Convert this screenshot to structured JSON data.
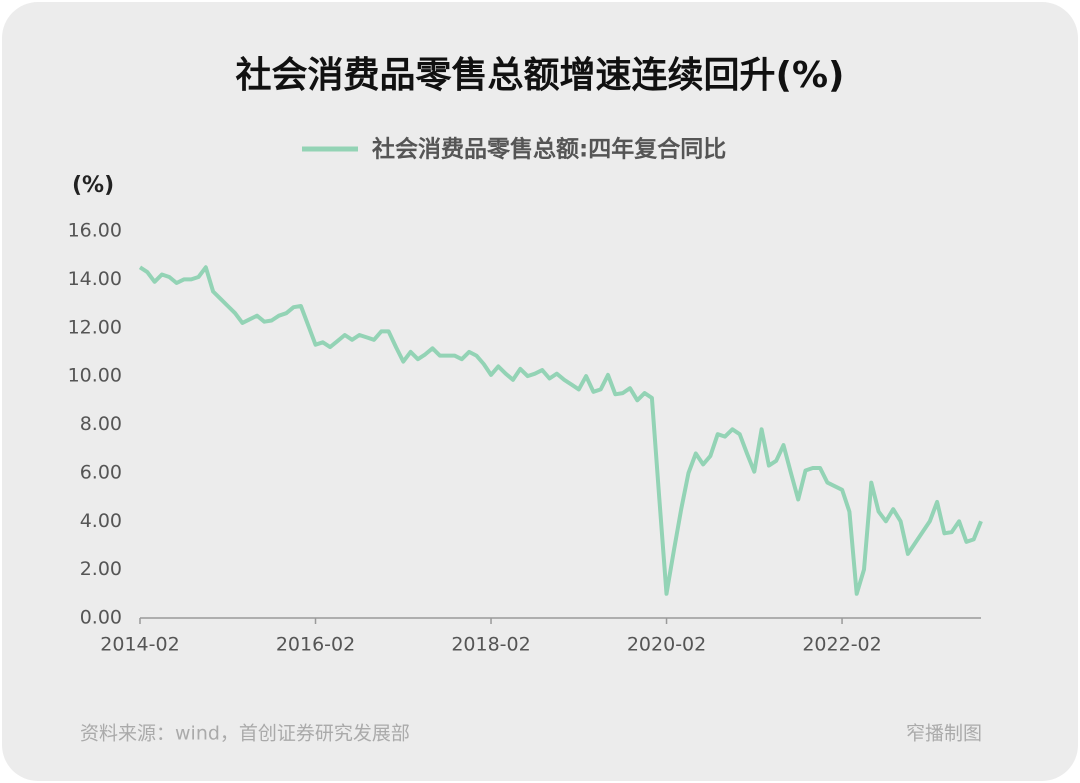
{
  "chart_data": {
    "type": "line",
    "title": "社会消费品零售总额增速连续回升(%)",
    "y_unit_label": "(%)",
    "source": "资料来源：wind，首创证券研究发展部",
    "credit": "窄播制图",
    "x": [
      "2014-02",
      "2014-03",
      "2014-04",
      "2014-05",
      "2014-06",
      "2014-07",
      "2014-08",
      "2014-09",
      "2014-10",
      "2014-11",
      "2014-12",
      "2015-01",
      "2015-02",
      "2015-03",
      "2015-04",
      "2015-05",
      "2015-06",
      "2015-07",
      "2015-08",
      "2015-09",
      "2015-10",
      "2015-11",
      "2015-12",
      "2016-01",
      "2016-02",
      "2016-03",
      "2016-04",
      "2016-05",
      "2016-06",
      "2016-07",
      "2016-08",
      "2016-09",
      "2016-10",
      "2016-11",
      "2016-12",
      "2017-01",
      "2017-02",
      "2017-03",
      "2017-04",
      "2017-05",
      "2017-06",
      "2017-07",
      "2017-08",
      "2017-09",
      "2017-10",
      "2017-11",
      "2017-12",
      "2018-01",
      "2018-02",
      "2018-03",
      "2018-04",
      "2018-05",
      "2018-06",
      "2018-07",
      "2018-08",
      "2018-09",
      "2018-10",
      "2018-11",
      "2018-12",
      "2019-01",
      "2019-02",
      "2019-03",
      "2019-04",
      "2019-05",
      "2019-06",
      "2019-07",
      "2019-08",
      "2019-09",
      "2019-10",
      "2019-11",
      "2019-12",
      "2020-01",
      "2020-02",
      "2020-03",
      "2020-04",
      "2020-05",
      "2020-06",
      "2020-07",
      "2020-08",
      "2020-09",
      "2020-10",
      "2020-11",
      "2020-12",
      "2021-01",
      "2021-02",
      "2021-03",
      "2021-04",
      "2021-05",
      "2021-06",
      "2021-07",
      "2021-08",
      "2021-09",
      "2021-10",
      "2021-11",
      "2021-12",
      "2022-01",
      "2022-02",
      "2022-03",
      "2022-04",
      "2022-05",
      "2022-06",
      "2022-07",
      "2022-08",
      "2022-09",
      "2022-10",
      "2022-11",
      "2022-12",
      "2023-01",
      "2023-02",
      "2023-03",
      "2023-04",
      "2023-05",
      "2023-06",
      "2023-07",
      "2023-08",
      "2023-09"
    ],
    "series": [
      {
        "name": "社会消费品零售总额:四年复合同比",
        "color": "#93d3b5",
        "values": [
          14.5,
          14.3,
          13.9,
          14.2,
          14.1,
          13.85,
          14.0,
          14.0,
          14.1,
          14.5,
          13.5,
          13.2,
          12.9,
          12.6,
          12.2,
          12.35,
          12.5,
          12.25,
          12.3,
          12.5,
          12.6,
          12.85,
          12.9,
          12.1,
          11.3,
          11.4,
          11.2,
          11.45,
          11.7,
          11.5,
          11.7,
          11.6,
          11.5,
          11.85,
          11.85,
          11.2,
          10.6,
          11.0,
          10.7,
          10.9,
          11.15,
          10.85,
          10.85,
          10.85,
          10.7,
          11.0,
          10.85,
          10.5,
          10.05,
          10.4,
          10.1,
          9.85,
          10.3,
          10.0,
          10.1,
          10.25,
          9.9,
          10.1,
          9.85,
          9.65,
          9.45,
          10.0,
          9.35,
          9.45,
          10.05,
          9.25,
          9.3,
          9.5,
          9.0,
          9.3,
          9.1,
          5.0,
          1.0,
          2.8,
          4.5,
          6.0,
          6.8,
          6.35,
          6.7,
          7.6,
          7.5,
          7.8,
          7.6,
          6.8,
          6.05,
          7.8,
          6.3,
          6.5,
          7.15,
          6.0,
          4.9,
          6.1,
          6.2,
          6.2,
          5.6,
          5.45,
          5.3,
          4.4,
          1.0,
          2.0,
          5.6,
          4.4,
          4.0,
          4.5,
          4.0,
          2.65,
          3.1,
          3.55,
          4.0,
          4.8,
          3.5,
          3.55,
          4.0,
          3.15,
          3.25,
          4.0
        ]
      }
    ],
    "xlim": [
      "2014-02",
      "2023-09"
    ],
    "xticks": [
      "2014-02",
      "2016-02",
      "2018-02",
      "2020-02",
      "2022-02"
    ],
    "ylim": [
      0,
      16
    ],
    "yticks": [
      {
        "value": 0,
        "label": "0.00"
      },
      {
        "value": 2,
        "label": "2.00"
      },
      {
        "value": 4,
        "label": "4.00"
      },
      {
        "value": 6,
        "label": "6.00"
      },
      {
        "value": 8,
        "label": "8.00"
      },
      {
        "value": 10,
        "label": "10.00"
      },
      {
        "value": 12,
        "label": "12.00"
      },
      {
        "value": 14,
        "label": "14.00"
      },
      {
        "value": 16,
        "label": "16.00"
      }
    ],
    "legend": "top"
  }
}
